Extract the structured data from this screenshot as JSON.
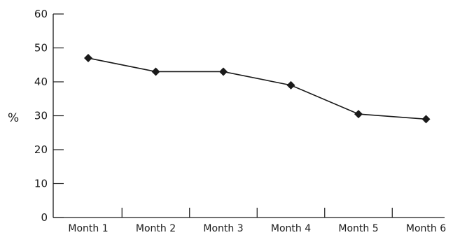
{
  "chart_data": {
    "type": "line",
    "title": "",
    "xlabel": "",
    "ylabel": "%",
    "categories": [
      "Month 1",
      "Month 2",
      "Month 3",
      "Month 4",
      "Month 5",
      "Month 6"
    ],
    "series": [
      {
        "values": [
          47,
          43,
          43,
          39,
          30.5,
          29
        ]
      }
    ],
    "ylim": [
      0,
      60
    ],
    "yticks": [
      0,
      10,
      20,
      30,
      40,
      50,
      60
    ],
    "grid": false,
    "legend": "none",
    "marker": "diamond",
    "colors": {
      "line": "#1a1a1a",
      "axis": "#1a1a1a"
    }
  }
}
